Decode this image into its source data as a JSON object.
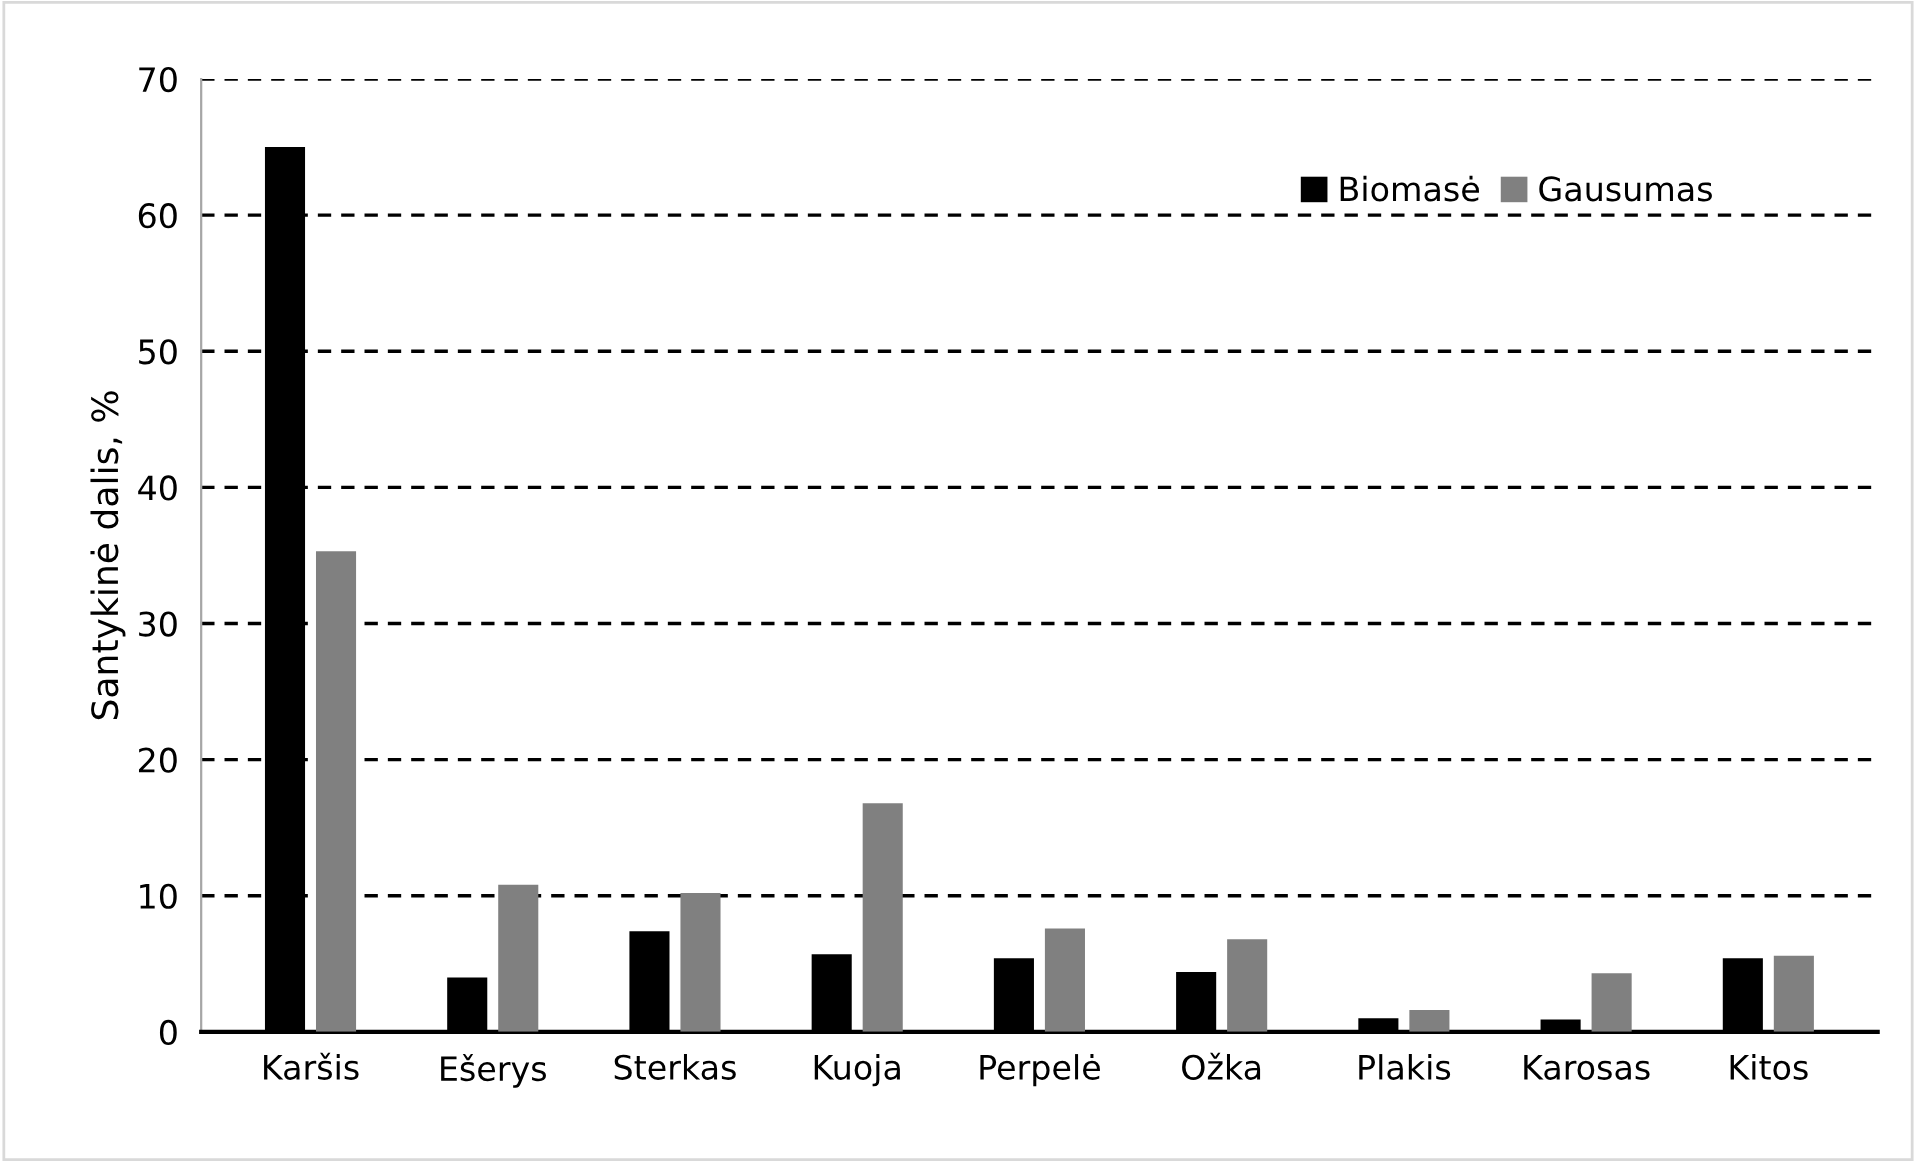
{
  "chart_data": {
    "type": "bar",
    "ylabel": "Santykinė dalis, %",
    "categories": [
      "Karšis",
      "Ešerys",
      "Sterkas",
      "Kuoja",
      "Perpelė",
      "Ožka",
      "Plakis",
      "Karosas",
      "Kitos"
    ],
    "series": [
      {
        "name": "Biomasė",
        "color": "#000000",
        "values": [
          65.0,
          4.0,
          7.4,
          5.7,
          5.4,
          4.4,
          1.0,
          0.9,
          5.4
        ]
      },
      {
        "name": "Gausumas",
        "color": "#808080",
        "values": [
          35.3,
          10.8,
          10.2,
          16.8,
          7.6,
          6.8,
          1.6,
          4.3,
          5.6
        ]
      }
    ],
    "ylim": [
      0,
      70
    ],
    "yticks": [
      0,
      10,
      20,
      30,
      40,
      50,
      60,
      70
    ],
    "grid": "y",
    "legend": "top right"
  }
}
